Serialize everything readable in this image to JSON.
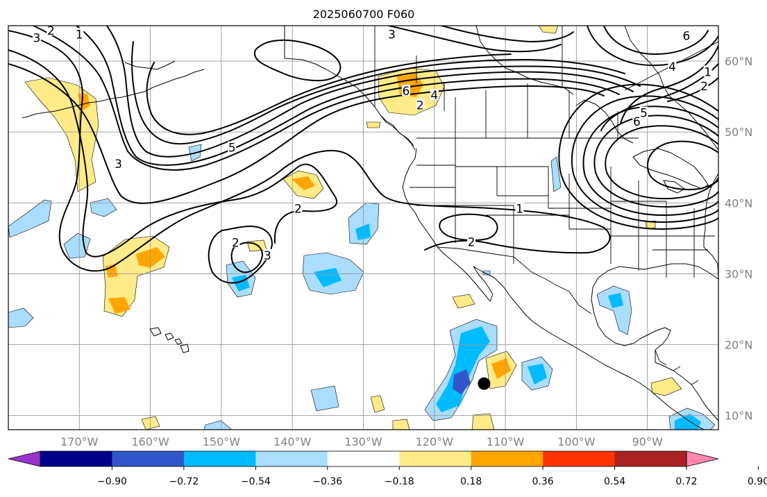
{
  "title": "2025060700 F060",
  "map": {
    "projection": "plate-carree",
    "extent": {
      "lon_min": -180,
      "lon_max": -80,
      "lat_min": 8,
      "lat_max": 65
    },
    "gridlines": true,
    "lon_ticks": [
      {
        "lon": -170,
        "label": "170°W"
      },
      {
        "lon": -160,
        "label": "160°W"
      },
      {
        "lon": -150,
        "label": "150°W"
      },
      {
        "lon": -140,
        "label": "140°W"
      },
      {
        "lon": -130,
        "label": "130°W"
      },
      {
        "lon": -120,
        "label": "120°W"
      },
      {
        "lon": -110,
        "label": "110°W"
      },
      {
        "lon": -100,
        "label": "100°W"
      },
      {
        "lon": -90,
        "label": "90°W"
      }
    ],
    "lat_ticks": [
      {
        "lat": 60,
        "label": "60°N"
      },
      {
        "lat": 50,
        "label": "50°N"
      },
      {
        "lat": 40,
        "label": "40°N"
      },
      {
        "lat": 30,
        "label": "30°N"
      },
      {
        "lat": 20,
        "label": "20°N"
      },
      {
        "lat": 10,
        "label": "10°N"
      }
    ],
    "marker": {
      "lon": -113,
      "lat": 14.5,
      "symbol": "filled-circle",
      "color": "#000000"
    },
    "contour_labels": [
      {
        "text": "3",
        "lon": -176,
        "lat": 63.3
      },
      {
        "text": "2",
        "lon": -174,
        "lat": 64.3
      },
      {
        "text": "1",
        "lon": -170,
        "lat": 63.8
      },
      {
        "text": "3",
        "lon": -126,
        "lat": 63.8
      },
      {
        "text": "6",
        "lon": -124,
        "lat": 55.8
      },
      {
        "text": "4",
        "lon": -120,
        "lat": 55.2
      },
      {
        "text": "2",
        "lon": -122,
        "lat": 53.8
      },
      {
        "text": "5",
        "lon": -148.5,
        "lat": 47.8
      },
      {
        "text": "3",
        "lon": -164.5,
        "lat": 45.5
      },
      {
        "text": "2",
        "lon": -139.2,
        "lat": 39.2
      },
      {
        "text": "2",
        "lon": -148,
        "lat": 34.4
      },
      {
        "text": "3",
        "lon": -143.5,
        "lat": 32.6
      },
      {
        "text": "2",
        "lon": -114.8,
        "lat": 34.5
      },
      {
        "text": "1",
        "lon": -108,
        "lat": 39.2
      },
      {
        "text": "6",
        "lon": -84.5,
        "lat": 63.6
      },
      {
        "text": "4",
        "lon": -86.5,
        "lat": 59.2
      },
      {
        "text": "2",
        "lon": -82,
        "lat": 56.5
      },
      {
        "text": "1",
        "lon": -81.5,
        "lat": 58.5
      },
      {
        "text": "5",
        "lon": -90.5,
        "lat": 52.7
      },
      {
        "text": "6",
        "lon": -91.5,
        "lat": 51.5
      }
    ]
  },
  "colorbar": {
    "colors": [
      "#9933cc",
      "#000088",
      "#3355cc",
      "#00bbff",
      "#aaddff",
      "#ffffff",
      "#ffeb88",
      "#ffa500",
      "#ff3300",
      "#aa2222",
      "#ff88aa"
    ],
    "boundaries": [
      -0.9,
      -0.72,
      -0.54,
      -0.36,
      -0.18,
      0.18,
      0.36,
      0.54,
      0.72,
      0.9
    ],
    "tick_labels": [
      "−0.90",
      "−0.72",
      "−0.54",
      "−0.36",
      "−0.18",
      "0.18",
      "0.36",
      "0.54",
      "0.72",
      "0.90"
    ],
    "extend": "both"
  },
  "colors": {
    "border": "#000000",
    "gridline": "#999999",
    "tick_label": "#808080",
    "contour": "#000000"
  }
}
